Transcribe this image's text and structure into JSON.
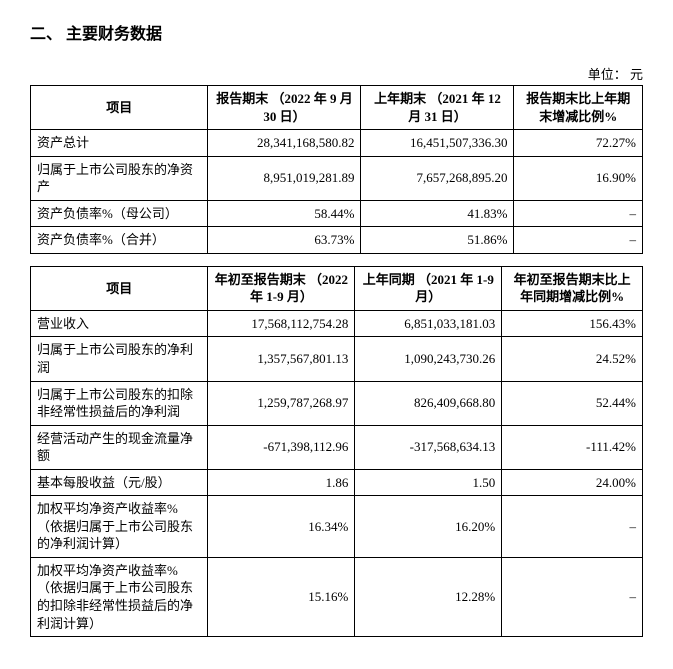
{
  "section_title": "二、     主要财务数据",
  "unit_label": "单位：   元",
  "tableA": {
    "headers": {
      "item": "项目",
      "cur": "报告期末\n（2022 年 9 月 30 日）",
      "prev": "上年期末\n（2021 年 12 月 31 日）",
      "change": "报告期末比上年期末增减比例%"
    },
    "rows": [
      {
        "label": "资产总计",
        "cur": "28,341,168,580.82",
        "prev": "16,451,507,336.30",
        "chg": "72.27%"
      },
      {
        "label": "归属于上市公司股东的净资产",
        "cur": "8,951,019,281.89",
        "prev": "7,657,268,895.20",
        "chg": "16.90%"
      },
      {
        "label": "资产负债率%（母公司）",
        "cur": "58.44%",
        "prev": "41.83%",
        "chg": "–"
      },
      {
        "label": "资产负债率%（合并）",
        "cur": "63.73%",
        "prev": "51.86%",
        "chg": "–"
      }
    ]
  },
  "tableB": {
    "headers": {
      "item": "项目",
      "cur": "年初至报告期末\n（2022 年 1-9 月）",
      "prev": "上年同期\n（2021 年 1-9 月）",
      "change": "年初至报告期末比上年同期增减比例%"
    },
    "rows": [
      {
        "label": "营业收入",
        "cur": "17,568,112,754.28",
        "prev": "6,851,033,181.03",
        "chg": "156.43%"
      },
      {
        "label": "归属于上市公司股东的净利润",
        "cur": "1,357,567,801.13",
        "prev": "1,090,243,730.26",
        "chg": "24.52%"
      },
      {
        "label": "归属于上市公司股东的扣除非经常性损益后的净利润",
        "cur": "1,259,787,268.97",
        "prev": "826,409,668.80",
        "chg": "52.44%"
      },
      {
        "label": "经营活动产生的现金流量净额",
        "cur": "-671,398,112.96",
        "prev": "-317,568,634.13",
        "chg": "-111.42%"
      },
      {
        "label": "基本每股收益（元/股）",
        "cur": "1.86",
        "prev": "1.50",
        "chg": "24.00%"
      },
      {
        "label": "加权平均净资产收益率%（依据归属于上市公司股东的净利润计算）",
        "cur": "16.34%",
        "prev": "16.20%",
        "chg": "–"
      },
      {
        "label": "加权平均净资产收益率%（依据归属于上市公司股东的扣除非经常性损益后的净利润计算）",
        "cur": "15.16%",
        "prev": "12.28%",
        "chg": "–"
      }
    ]
  }
}
